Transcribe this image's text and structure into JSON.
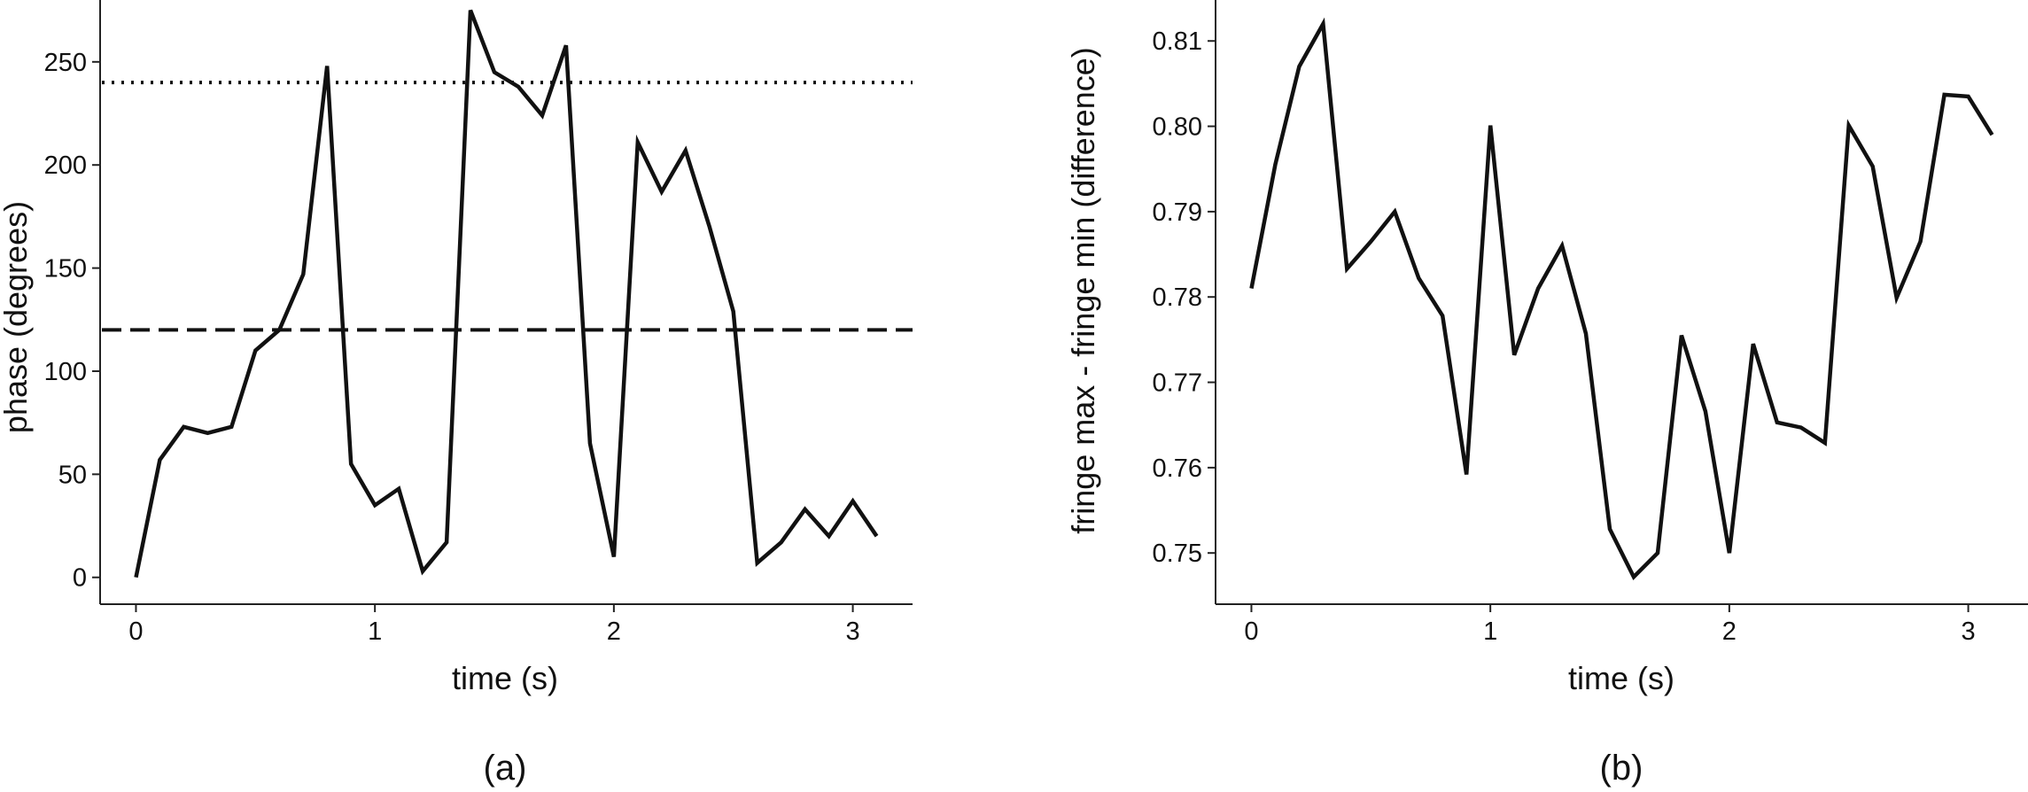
{
  "chart_data": [
    {
      "type": "line",
      "panel_label": "(a)",
      "xlabel": "time (s)",
      "ylabel": "phase (degrees)",
      "xlim": [
        -0.15,
        3.25
      ],
      "ylim": [
        -13,
        280
      ],
      "xticks": [
        0,
        1,
        2,
        3
      ],
      "yticks": [
        0,
        50,
        100,
        150,
        200,
        250
      ],
      "grid": false,
      "series": [
        {
          "x": [
            0,
            0.1,
            0.2,
            0.3,
            0.4,
            0.5,
            0.6,
            0.7,
            0.8,
            0.9,
            1.0,
            1.1,
            1.2,
            1.3,
            1.4,
            1.5,
            1.6,
            1.7,
            1.8,
            1.9,
            2.0,
            2.1,
            2.2,
            2.3,
            2.4,
            2.5,
            2.6,
            2.7,
            2.8,
            2.9,
            3.0,
            3.1
          ],
          "y": [
            0,
            57,
            73,
            70,
            73,
            110,
            120,
            147,
            248,
            55,
            35,
            43,
            3,
            17,
            275,
            245,
            238,
            224,
            258,
            65,
            10,
            211,
            187,
            207,
            170,
            129,
            7,
            17,
            33,
            20,
            37,
            20
          ]
        }
      ],
      "reference_lines": [
        {
          "y": 240,
          "style": "dotted"
        },
        {
          "y": 120,
          "style": "dashed"
        }
      ]
    },
    {
      "type": "line",
      "panel_label": "(b)",
      "xlabel": "time (s)",
      "ylabel": "fringe max - fringe min (difference)",
      "xlim": [
        -0.15,
        3.25
      ],
      "ylim": [
        0.744,
        0.8148
      ],
      "xticks": [
        0,
        1,
        2,
        3
      ],
      "yticks": [
        0.75,
        0.76,
        0.77,
        0.78,
        0.79,
        0.8,
        0.81
      ],
      "ytick_labels": [
        "0.75",
        "0.76",
        "0.77",
        "0.78",
        "0.79",
        "0.80",
        "0.81"
      ],
      "grid": false,
      "series": [
        {
          "x": [
            0,
            0.1,
            0.2,
            0.3,
            0.4,
            0.5,
            0.6,
            0.7,
            0.8,
            0.9,
            1.0,
            1.1,
            1.2,
            1.3,
            1.4,
            1.5,
            1.6,
            1.7,
            1.8,
            1.9,
            2.0,
            2.1,
            2.2,
            2.3,
            2.4,
            2.5,
            2.6,
            2.7,
            2.8,
            2.9,
            3.0,
            3.1
          ],
          "y": [
            0.781,
            0.7955,
            0.807,
            0.812,
            0.7833,
            0.7865,
            0.79,
            0.7822,
            0.7778,
            0.7592,
            0.8001,
            0.7732,
            0.781,
            0.786,
            0.7757,
            0.7528,
            0.7472,
            0.75,
            0.7755,
            0.7666,
            0.75,
            0.7745,
            0.7653,
            0.7647,
            0.7629,
            0.8001,
            0.7953,
            0.7799,
            0.7865,
            0.8037,
            0.8035,
            0.799
          ]
        }
      ]
    }
  ]
}
